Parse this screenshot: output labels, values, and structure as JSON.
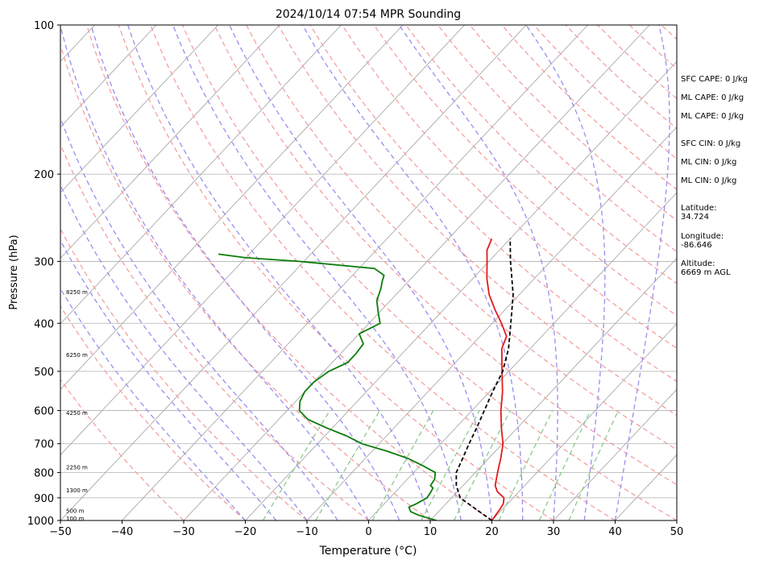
{
  "chart_data": {
    "type": "line",
    "title": "2024/10/14 07:54 MPR Sounding",
    "xlabel": "Temperature (°C)",
    "ylabel": "Pressure (hPa)",
    "xlim": [
      -50,
      50
    ],
    "ylim": [
      1000,
      100
    ],
    "y_scale": "log",
    "x_ticks": [
      -50,
      -40,
      -30,
      -20,
      -10,
      0,
      10,
      20,
      30,
      40,
      50
    ],
    "x_tick_labels": [
      "−50",
      "−40",
      "−30",
      "−20",
      "−10",
      "0",
      "10",
      "20",
      "30",
      "40",
      "50"
    ],
    "y_ticks": [
      1000,
      900,
      800,
      700,
      600,
      500,
      400,
      300,
      200,
      100
    ],
    "y_tick_labels": [
      "1000",
      "900",
      "800",
      "700",
      "600",
      "500",
      "400",
      "300",
      "200",
      "100"
    ],
    "grid": true,
    "colors": {
      "temperature": "#e31a1c",
      "dewpoint": "#0a7d0a",
      "parcel": "#000000",
      "dry_adiabat": "#f4a0a0",
      "moist_adiabat": "#9a8ef0",
      "mixing_ratio": "#8ec98e",
      "isotherm": "#a0a0a0"
    },
    "series": [
      {
        "key": "temperature",
        "pressure": [
          1000,
          975,
          950,
          925,
          900,
          875,
          850,
          825,
          800,
          775,
          750,
          700,
          650,
          600,
          550,
          500,
          450,
          425,
          400,
          375,
          350,
          325,
          300,
          285,
          270
        ],
        "temperature": [
          20,
          19.8,
          19.6,
          19.3,
          18.5,
          16.5,
          15.2,
          14.4,
          13.6,
          12.8,
          12.0,
          10.1,
          7.4,
          4.7,
          2.1,
          -1.1,
          -4.6,
          -5.7,
          -8.5,
          -11.7,
          -14.9,
          -17.7,
          -20.3,
          -22.0,
          -23.0
        ]
      },
      {
        "key": "dewpoint",
        "pressure": [
          1000,
          990,
          975,
          960,
          950,
          940,
          925,
          900,
          880,
          860,
          850,
          840,
          825,
          800,
          775,
          750,
          725,
          700,
          675,
          650,
          625,
          600,
          575,
          550,
          525,
          500,
          480,
          460,
          440,
          420,
          400,
          380,
          360,
          340,
          330,
          320,
          310,
          300,
          295,
          290
        ],
        "temperature": [
          11,
          9.5,
          7.2,
          5.5,
          5.0,
          4.5,
          5.2,
          6.0,
          5.8,
          5.5,
          4.7,
          4.6,
          4.4,
          3.5,
          0.4,
          -3.0,
          -7.5,
          -12.8,
          -16.5,
          -21.0,
          -25.3,
          -28.0,
          -29.3,
          -30.0,
          -30.0,
          -29.2,
          -27.5,
          -27.5,
          -27.8,
          -30.0,
          -28.2,
          -30.2,
          -32.2,
          -33.4,
          -34.2,
          -34.9,
          -37.5,
          -50.8,
          -60.0,
          -65.0
        ]
      },
      {
        "key": "parcel",
        "pressure": [
          1000,
          950,
          900,
          850,
          800,
          750,
          700,
          650,
          600,
          550,
          500,
          450,
          400,
          350,
          300,
          270
        ],
        "temperature": [
          20,
          15.8,
          11.4,
          8.9,
          6.9,
          5.8,
          4.6,
          3.4,
          2.0,
          0.5,
          -1.0,
          -3.5,
          -7.0,
          -11.0,
          -16.5,
          -20.0
        ]
      }
    ],
    "height_labels": [
      {
        "label": "100 m",
        "pressure": 988
      },
      {
        "label": "500 m",
        "pressure": 955
      },
      {
        "label": "1300 m",
        "pressure": 868
      },
      {
        "label": "2250 m",
        "pressure": 780
      },
      {
        "label": "4250 m",
        "pressure": 605
      },
      {
        "label": "6250 m",
        "pressure": 462
      },
      {
        "label": "8250 m",
        "pressure": 345
      }
    ]
  },
  "indices": {
    "sfc_cape": "SFC CAPE: 0 J/kg",
    "ml_cape_1": "ML CAPE: 0 J/kg",
    "ml_cape_2": "ML CAPE: 0 J/kg",
    "sfc_cin": "SFC CIN: 0 J/kg",
    "ml_cin_1": "ML CIN: 0 J/kg",
    "ml_cin_2": "ML CIN: 0 J/kg",
    "latitude": "Latitude:\n34.724",
    "longitude": "Longitude:\n-86.646",
    "altitude": "Altitude:\n6669 m AGL"
  }
}
